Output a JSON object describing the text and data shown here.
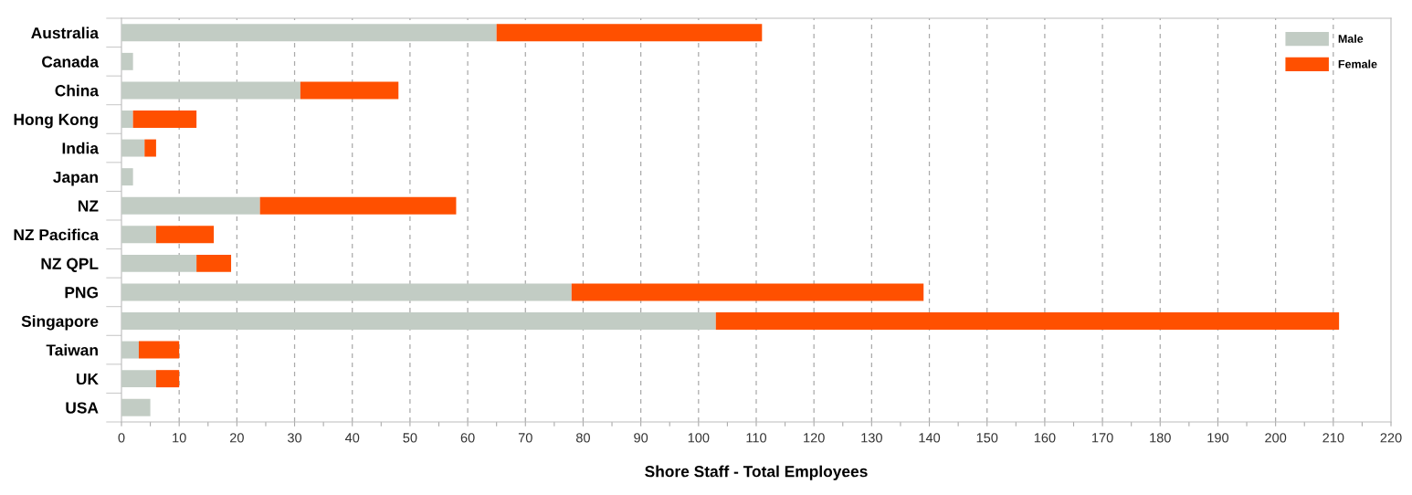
{
  "chart_data": {
    "type": "bar",
    "orientation": "horizontal",
    "stacked": true,
    "xlabel": "Shore Staff - Total Employees",
    "categories": [
      "Australia",
      "Canada",
      "China",
      "Hong Kong",
      "India",
      "Japan",
      "NZ",
      "NZ Pacifica",
      "NZ QPL",
      "PNG",
      "Singapore",
      "Taiwan",
      "UK",
      "USA"
    ],
    "series": [
      {
        "name": "Male",
        "color": "#c2ccc4",
        "values": [
          65,
          2,
          31,
          2,
          4,
          2,
          24,
          6,
          13,
          78,
          103,
          3,
          6,
          5
        ]
      },
      {
        "name": "Female",
        "color": "#ff5000",
        "values": [
          46,
          null,
          17,
          11,
          2,
          null,
          34,
          10,
          6,
          61,
          108,
          7,
          4,
          null
        ]
      }
    ],
    "xlim": [
      0,
      220
    ],
    "xticks": [
      0,
      {
        "value": 5,
        "label": null
      },
      10,
      {
        "value": 15,
        "label": null
      },
      20,
      {
        "value": 25,
        "label": null
      },
      30,
      {
        "value": 35,
        "label": null
      },
      40,
      {
        "value": 45,
        "label": null
      },
      50,
      {
        "value": 55,
        "label": null
      },
      60,
      {
        "value": 65,
        "label": null
      },
      70,
      {
        "value": 75,
        "label": null
      },
      80,
      {
        "value": 85,
        "label": null
      },
      90,
      {
        "value": 95,
        "label": null
      },
      100,
      {
        "value": 105,
        "label": null
      },
      110,
      {
        "value": 115,
        "label": null
      },
      120,
      {
        "value": 125,
        "label": null
      },
      130,
      {
        "value": 135,
        "label": null
      },
      140,
      {
        "value": 145,
        "label": null
      },
      150,
      {
        "value": 155,
        "label": null
      },
      160,
      {
        "value": 165,
        "label": null
      },
      170,
      {
        "value": 175,
        "label": null
      },
      180,
      {
        "value": 185,
        "label": null
      },
      190,
      {
        "value": 195,
        "label": null
      },
      200,
      {
        "value": 205,
        "label": null
      },
      210,
      {
        "value": 215,
        "label": null
      },
      220
    ],
    "grid": "x",
    "legend": "top right"
  }
}
